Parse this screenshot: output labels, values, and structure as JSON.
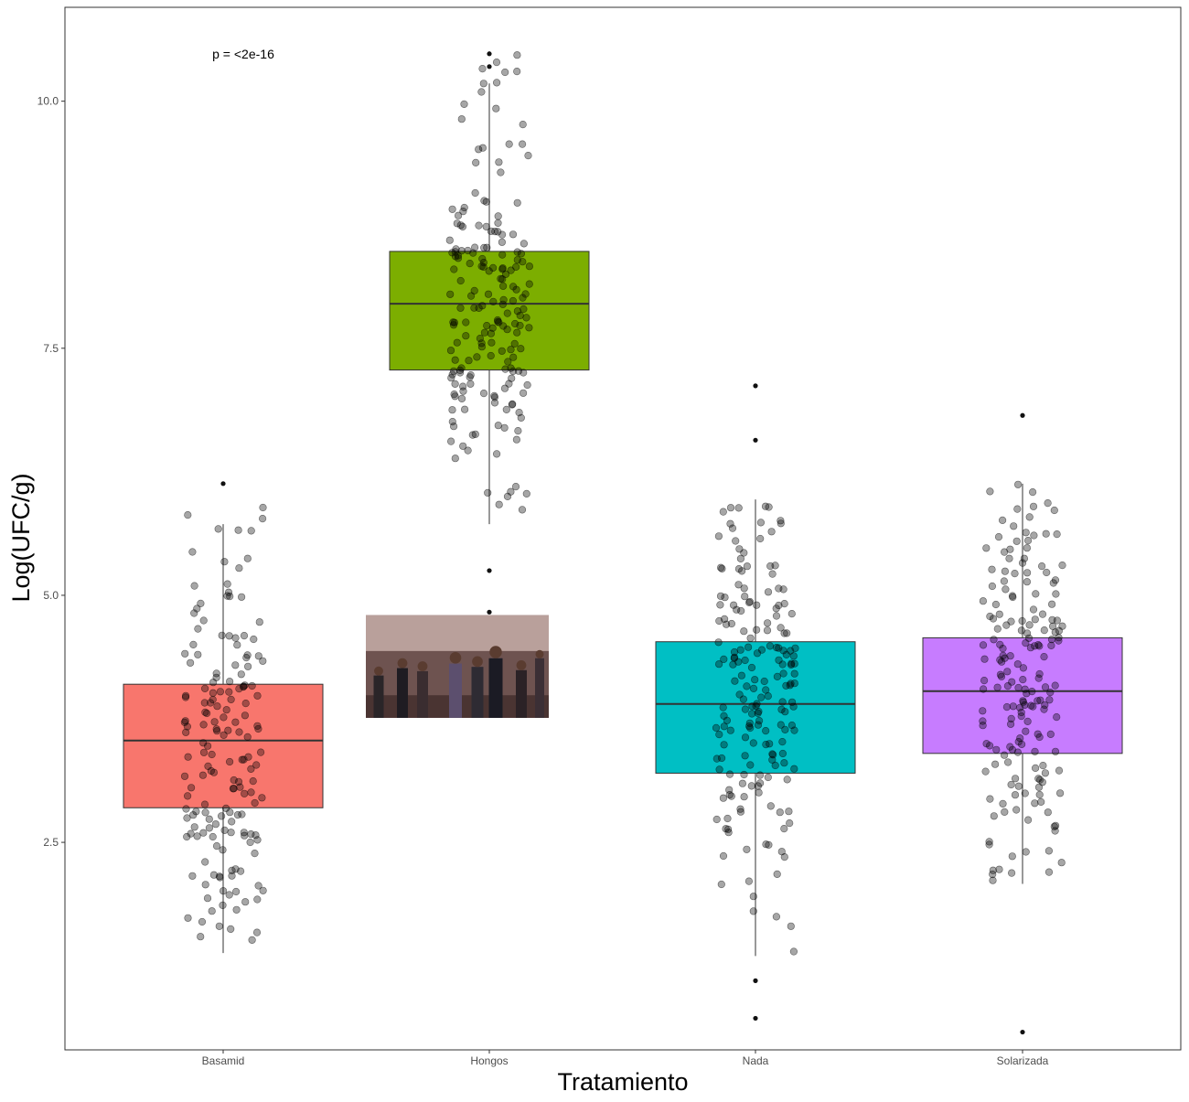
{
  "chart_data": {
    "type": "boxplot",
    "xlabel": "Tratamiento",
    "ylabel": "Log(UFC/g)",
    "ylim": [
      0.4,
      10.95
    ],
    "yticks": [
      {
        "value": 2.5,
        "label": "2.5"
      },
      {
        "value": 5.0,
        "label": "5.0"
      },
      {
        "value": 7.5,
        "label": "7.5"
      },
      {
        "value": 10.0,
        "label": "10.0"
      }
    ],
    "annotation": {
      "text": "p = <2e-16",
      "x_category": "Basamid",
      "y": 10.48
    },
    "grid": false,
    "legend": "none",
    "categories": [
      "Basamid",
      "Hongos",
      "Nada",
      "Solarizada"
    ],
    "boxes": [
      {
        "category": "Basamid",
        "color": "#F8766D",
        "q1": 2.85,
        "median": 3.53,
        "q3": 4.1,
        "whisker_low": 1.38,
        "whisker_high": 5.72,
        "outliers": [
          6.13
        ],
        "jitter": {
          "n": 170,
          "min": 1.45,
          "max": 6.13,
          "mean": 3.5,
          "sd": 1.0,
          "seed": 11
        }
      },
      {
        "category": "Hongos",
        "color": "#7CAE00",
        "q1": 7.28,
        "median": 7.95,
        "q3": 8.48,
        "whisker_low": 5.72,
        "whisker_high": 10.18,
        "outliers": [
          4.83,
          5.25,
          10.35,
          10.48
        ],
        "jitter": {
          "n": 190,
          "min": 5.7,
          "max": 10.48,
          "mean": 8.0,
          "sd": 0.95,
          "seed": 23
        }
      },
      {
        "category": "Nada",
        "color": "#00BFC4",
        "q1": 3.2,
        "median": 3.9,
        "q3": 4.53,
        "whisker_low": 1.35,
        "whisker_high": 5.97,
        "outliers": [
          0.72,
          1.1,
          6.57,
          7.12
        ],
        "jitter": {
          "n": 190,
          "min": 1.35,
          "max": 5.97,
          "mean": 3.9,
          "sd": 1.05,
          "seed": 37
        }
      },
      {
        "category": "Solarizada",
        "color": "#C77CFF",
        "q1": 3.4,
        "median": 4.03,
        "q3": 4.57,
        "whisker_low": 2.08,
        "whisker_high": 6.13,
        "outliers": [
          0.58,
          6.82
        ],
        "jitter": {
          "n": 185,
          "min": 2.08,
          "max": 6.13,
          "mean": 4.0,
          "sd": 0.95,
          "seed": 51
        }
      }
    ],
    "embedded_image": {
      "description": "meme-photo",
      "category": "Hongos",
      "y_top": 4.8,
      "y_bottom": 3.76
    }
  }
}
